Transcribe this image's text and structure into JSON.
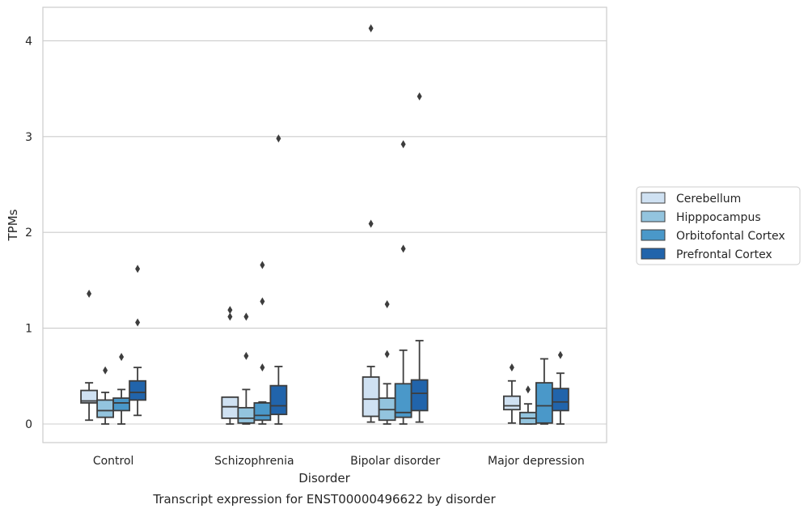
{
  "chart_data": {
    "type": "box",
    "caption": "Transcript expression for ENST00000496622 by disorder",
    "xlabel": "Disorder",
    "ylabel": "TPMs",
    "ylim": [
      -0.2,
      4.35
    ],
    "yticks": [
      0,
      1,
      2,
      3,
      4
    ],
    "grid": "horizontal",
    "legend_position": "right",
    "categories": [
      "Control",
      "Schizophrenia",
      "Bipolar disorder",
      "Major depression"
    ],
    "series": [
      {
        "name": "Cerebellum",
        "color": "#cfe1f2",
        "boxes": [
          {
            "whisker_low": 0.04,
            "q1": 0.22,
            "median": 0.24,
            "q3": 0.35,
            "whisker_high": 0.43,
            "outliers": [
              1.36
            ]
          },
          {
            "whisker_low": 0.0,
            "q1": 0.06,
            "median": 0.18,
            "q3": 0.28,
            "whisker_high": 0.28,
            "outliers": [
              1.12,
              1.19
            ]
          },
          {
            "whisker_low": 0.02,
            "q1": 0.08,
            "median": 0.26,
            "q3": 0.49,
            "whisker_high": 0.6,
            "outliers": [
              2.09,
              4.13
            ]
          },
          {
            "whisker_low": 0.01,
            "q1": 0.15,
            "median": 0.19,
            "q3": 0.29,
            "whisker_high": 0.45,
            "outliers": [
              0.59
            ]
          }
        ]
      },
      {
        "name": "Hipppocampus",
        "color": "#93c4de",
        "boxes": [
          {
            "whisker_low": 0.0,
            "q1": 0.07,
            "median": 0.14,
            "q3": 0.25,
            "whisker_high": 0.33,
            "outliers": [
              0.56
            ]
          },
          {
            "whisker_low": 0.0,
            "q1": 0.01,
            "median": 0.06,
            "q3": 0.17,
            "whisker_high": 0.36,
            "outliers": [
              0.71,
              1.12
            ]
          },
          {
            "whisker_low": 0.0,
            "q1": 0.04,
            "median": 0.15,
            "q3": 0.27,
            "whisker_high": 0.42,
            "outliers": [
              0.73,
              1.25
            ]
          },
          {
            "whisker_low": 0.0,
            "q1": 0.0,
            "median": 0.06,
            "q3": 0.12,
            "whisker_high": 0.21,
            "outliers": [
              0.36
            ]
          }
        ]
      },
      {
        "name": "Orbitofontal Cortex",
        "color": "#4a98c9",
        "boxes": [
          {
            "whisker_low": 0.0,
            "q1": 0.14,
            "median": 0.22,
            "q3": 0.27,
            "whisker_high": 0.36,
            "outliers": [
              0.7
            ]
          },
          {
            "whisker_low": 0.0,
            "q1": 0.04,
            "median": 0.09,
            "q3": 0.22,
            "whisker_high": 0.23,
            "outliers": [
              0.59,
              1.28,
              1.66
            ]
          },
          {
            "whisker_low": 0.0,
            "q1": 0.07,
            "median": 0.12,
            "q3": 0.42,
            "whisker_high": 0.77,
            "outliers": [
              1.83,
              2.92
            ]
          },
          {
            "whisker_low": 0.0,
            "q1": 0.01,
            "median": 0.19,
            "q3": 0.43,
            "whisker_high": 0.68,
            "outliers": []
          }
        ]
      },
      {
        "name": "Prefrontal Cortex",
        "color": "#2164ab",
        "boxes": [
          {
            "whisker_low": 0.09,
            "q1": 0.25,
            "median": 0.33,
            "q3": 0.45,
            "whisker_high": 0.59,
            "outliers": [
              1.06,
              1.62
            ]
          },
          {
            "whisker_low": 0.0,
            "q1": 0.1,
            "median": 0.19,
            "q3": 0.4,
            "whisker_high": 0.6,
            "outliers": [
              2.98
            ]
          },
          {
            "whisker_low": 0.02,
            "q1": 0.14,
            "median": 0.32,
            "q3": 0.46,
            "whisker_high": 0.87,
            "outliers": [
              3.42
            ]
          },
          {
            "whisker_low": 0.0,
            "q1": 0.14,
            "median": 0.23,
            "q3": 0.37,
            "whisker_high": 0.53,
            "outliers": [
              0.72
            ]
          }
        ]
      }
    ]
  }
}
